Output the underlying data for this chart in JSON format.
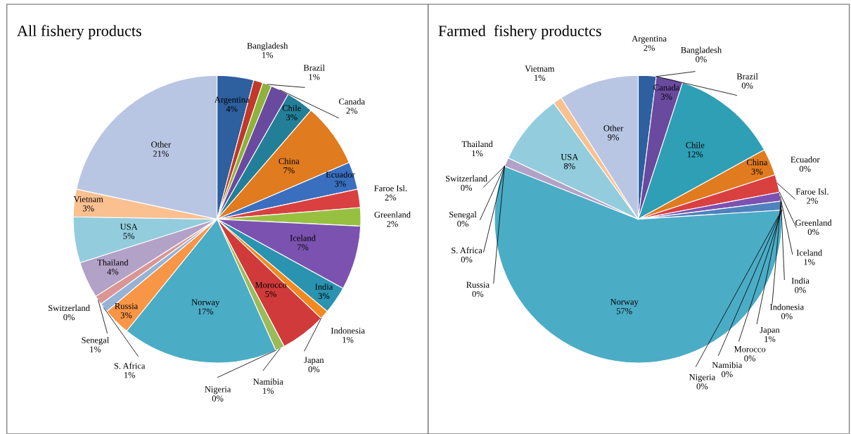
{
  "chart_data": [
    {
      "type": "pie",
      "title": "All fishery products",
      "categories": [
        "Argentina",
        "Bangladesh",
        "Brazil",
        "Canada",
        "Chile",
        "China",
        "Ecuador",
        "Faroe Isl.",
        "Greenland",
        "Iceland",
        "India",
        "Indonesia",
        "Japan",
        "Morocco",
        "Namibia",
        "Nigeria",
        "Norway",
        "Russia",
        "S. Africa",
        "Senegal",
        "Switzerland",
        "Thailand",
        "USA",
        "Vietnam",
        "Other"
      ],
      "values": [
        4,
        1,
        1,
        2,
        3,
        7,
        3,
        2,
        2,
        7,
        3,
        1,
        0,
        5,
        1,
        0,
        17,
        3,
        1,
        1,
        0,
        4,
        5,
        3,
        21
      ],
      "value_labels": [
        "4%",
        "1%",
        "1%",
        "2%",
        "3%",
        "7%",
        "3%",
        "2%",
        "2%",
        "7%",
        "3%",
        "1%",
        "0%",
        "5%",
        "1%",
        "0%",
        "17%",
        "3%",
        "1%",
        "1%",
        "0%",
        "4%",
        "5%",
        "3%",
        "21%"
      ],
      "colors": [
        "#2e5f9e",
        "#c0392b",
        "#8db33b",
        "#6a4a9e",
        "#237f97",
        "#e07b1f",
        "#3a6fc0",
        "#d94040",
        "#98c040",
        "#7b52b0",
        "#2a93b0",
        "#f08a20",
        "#4f81bd",
        "#d03a3a",
        "#9bbb59",
        "#8064a2",
        "#4bacc6",
        "#f79646",
        "#95b3d7",
        "#d99694",
        "#c3d69b",
        "#b3a2c7",
        "#93cddd",
        "#fac090",
        "#b9c6e3"
      ],
      "legend": false
    },
    {
      "type": "pie",
      "title": "Farmed  fishery productcs",
      "categories": [
        "Argentina",
        "Bangladesh",
        "Brazil",
        "Canada",
        "Chile",
        "China",
        "Ecuador",
        "Faroe Isl.",
        "Greenland",
        "Iceland",
        "India",
        "Indonesia",
        "Japan",
        "Morocco",
        "Namibia",
        "Nigeria",
        "Norway",
        "Russia",
        "S. Africa",
        "Senegal",
        "Switzerland",
        "Thailand",
        "USA",
        "Vietnam",
        "Other"
      ],
      "values": [
        2,
        0,
        0,
        3,
        12,
        3,
        0,
        2,
        0,
        1,
        0,
        0,
        1,
        0,
        0,
        0,
        57,
        0,
        0,
        0,
        0,
        1,
        8,
        1,
        9
      ],
      "value_labels": [
        "2%",
        "0%",
        "0%",
        "3%",
        "12%",
        "3%",
        "0%",
        "2%",
        "0%",
        "1%",
        "0%",
        "0%",
        "1%",
        "0%",
        "0%",
        "0%",
        "57%",
        "0%",
        "0%",
        "0%",
        "0%",
        "1%",
        "8%",
        "1%",
        "9%"
      ],
      "colors": [
        "#2e5f9e",
        "#c0392b",
        "#8db33b",
        "#6a4a9e",
        "#2e9fb5",
        "#e07b1f",
        "#3a6fc0",
        "#d94040",
        "#98c040",
        "#7b52b0",
        "#3aa8c0",
        "#f08a20",
        "#4f81bd",
        "#d03a3a",
        "#9bbb59",
        "#8064a2",
        "#4bacc6",
        "#f79646",
        "#95b3d7",
        "#d99694",
        "#c3d69b",
        "#b3a2c7",
        "#93cddd",
        "#fac090",
        "#b9c6e3"
      ],
      "legend": false
    }
  ]
}
